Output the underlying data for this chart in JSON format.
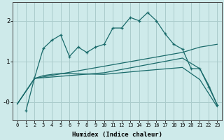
{
  "xlabel": "Humidex (Indice chaleur)",
  "background_color": "#ceeaea",
  "grid_color": "#aacccc",
  "line_color": "#1a6b6b",
  "xlim": [
    -0.5,
    23.5
  ],
  "ylim": [
    -0.45,
    2.45
  ],
  "yticks": [
    0.0,
    1.0,
    2.0
  ],
  "ytick_labels": [
    "-0",
    "1",
    "2"
  ],
  "xticks": [
    0,
    1,
    2,
    3,
    4,
    5,
    6,
    7,
    8,
    9,
    10,
    11,
    12,
    13,
    14,
    15,
    16,
    17,
    18,
    19,
    20,
    21,
    22,
    23
  ],
  "lines": [
    {
      "x": [
        1,
        2,
        3,
        4,
        5,
        6,
        7,
        8,
        9,
        10,
        11,
        12,
        13,
        14,
        15,
        16,
        17,
        18,
        19,
        20,
        21,
        22,
        23
      ],
      "y": [
        -0.22,
        0.6,
        1.32,
        1.52,
        1.65,
        1.12,
        1.35,
        1.22,
        1.35,
        1.42,
        1.82,
        1.82,
        2.08,
        2.0,
        2.2,
        2.0,
        1.68,
        1.42,
        1.3,
        0.82,
        0.82,
        0.38,
        -0.07
      ],
      "has_markers": true
    },
    {
      "x": [
        0,
        2,
        10,
        19,
        21,
        23
      ],
      "y": [
        -0.05,
        0.58,
        0.88,
        1.22,
        1.35,
        1.42
      ],
      "has_markers": false
    },
    {
      "x": [
        0,
        2,
        10,
        14,
        19,
        21,
        22,
        23
      ],
      "y": [
        -0.05,
        0.58,
        0.72,
        0.88,
        1.08,
        0.82,
        0.42,
        -0.07
      ],
      "has_markers": false
    },
    {
      "x": [
        0,
        2,
        3,
        4,
        5,
        10,
        14,
        19,
        21,
        23
      ],
      "y": [
        -0.05,
        0.58,
        0.65,
        0.68,
        0.7,
        0.68,
        0.76,
        0.85,
        0.55,
        -0.12
      ],
      "has_markers": false
    }
  ]
}
